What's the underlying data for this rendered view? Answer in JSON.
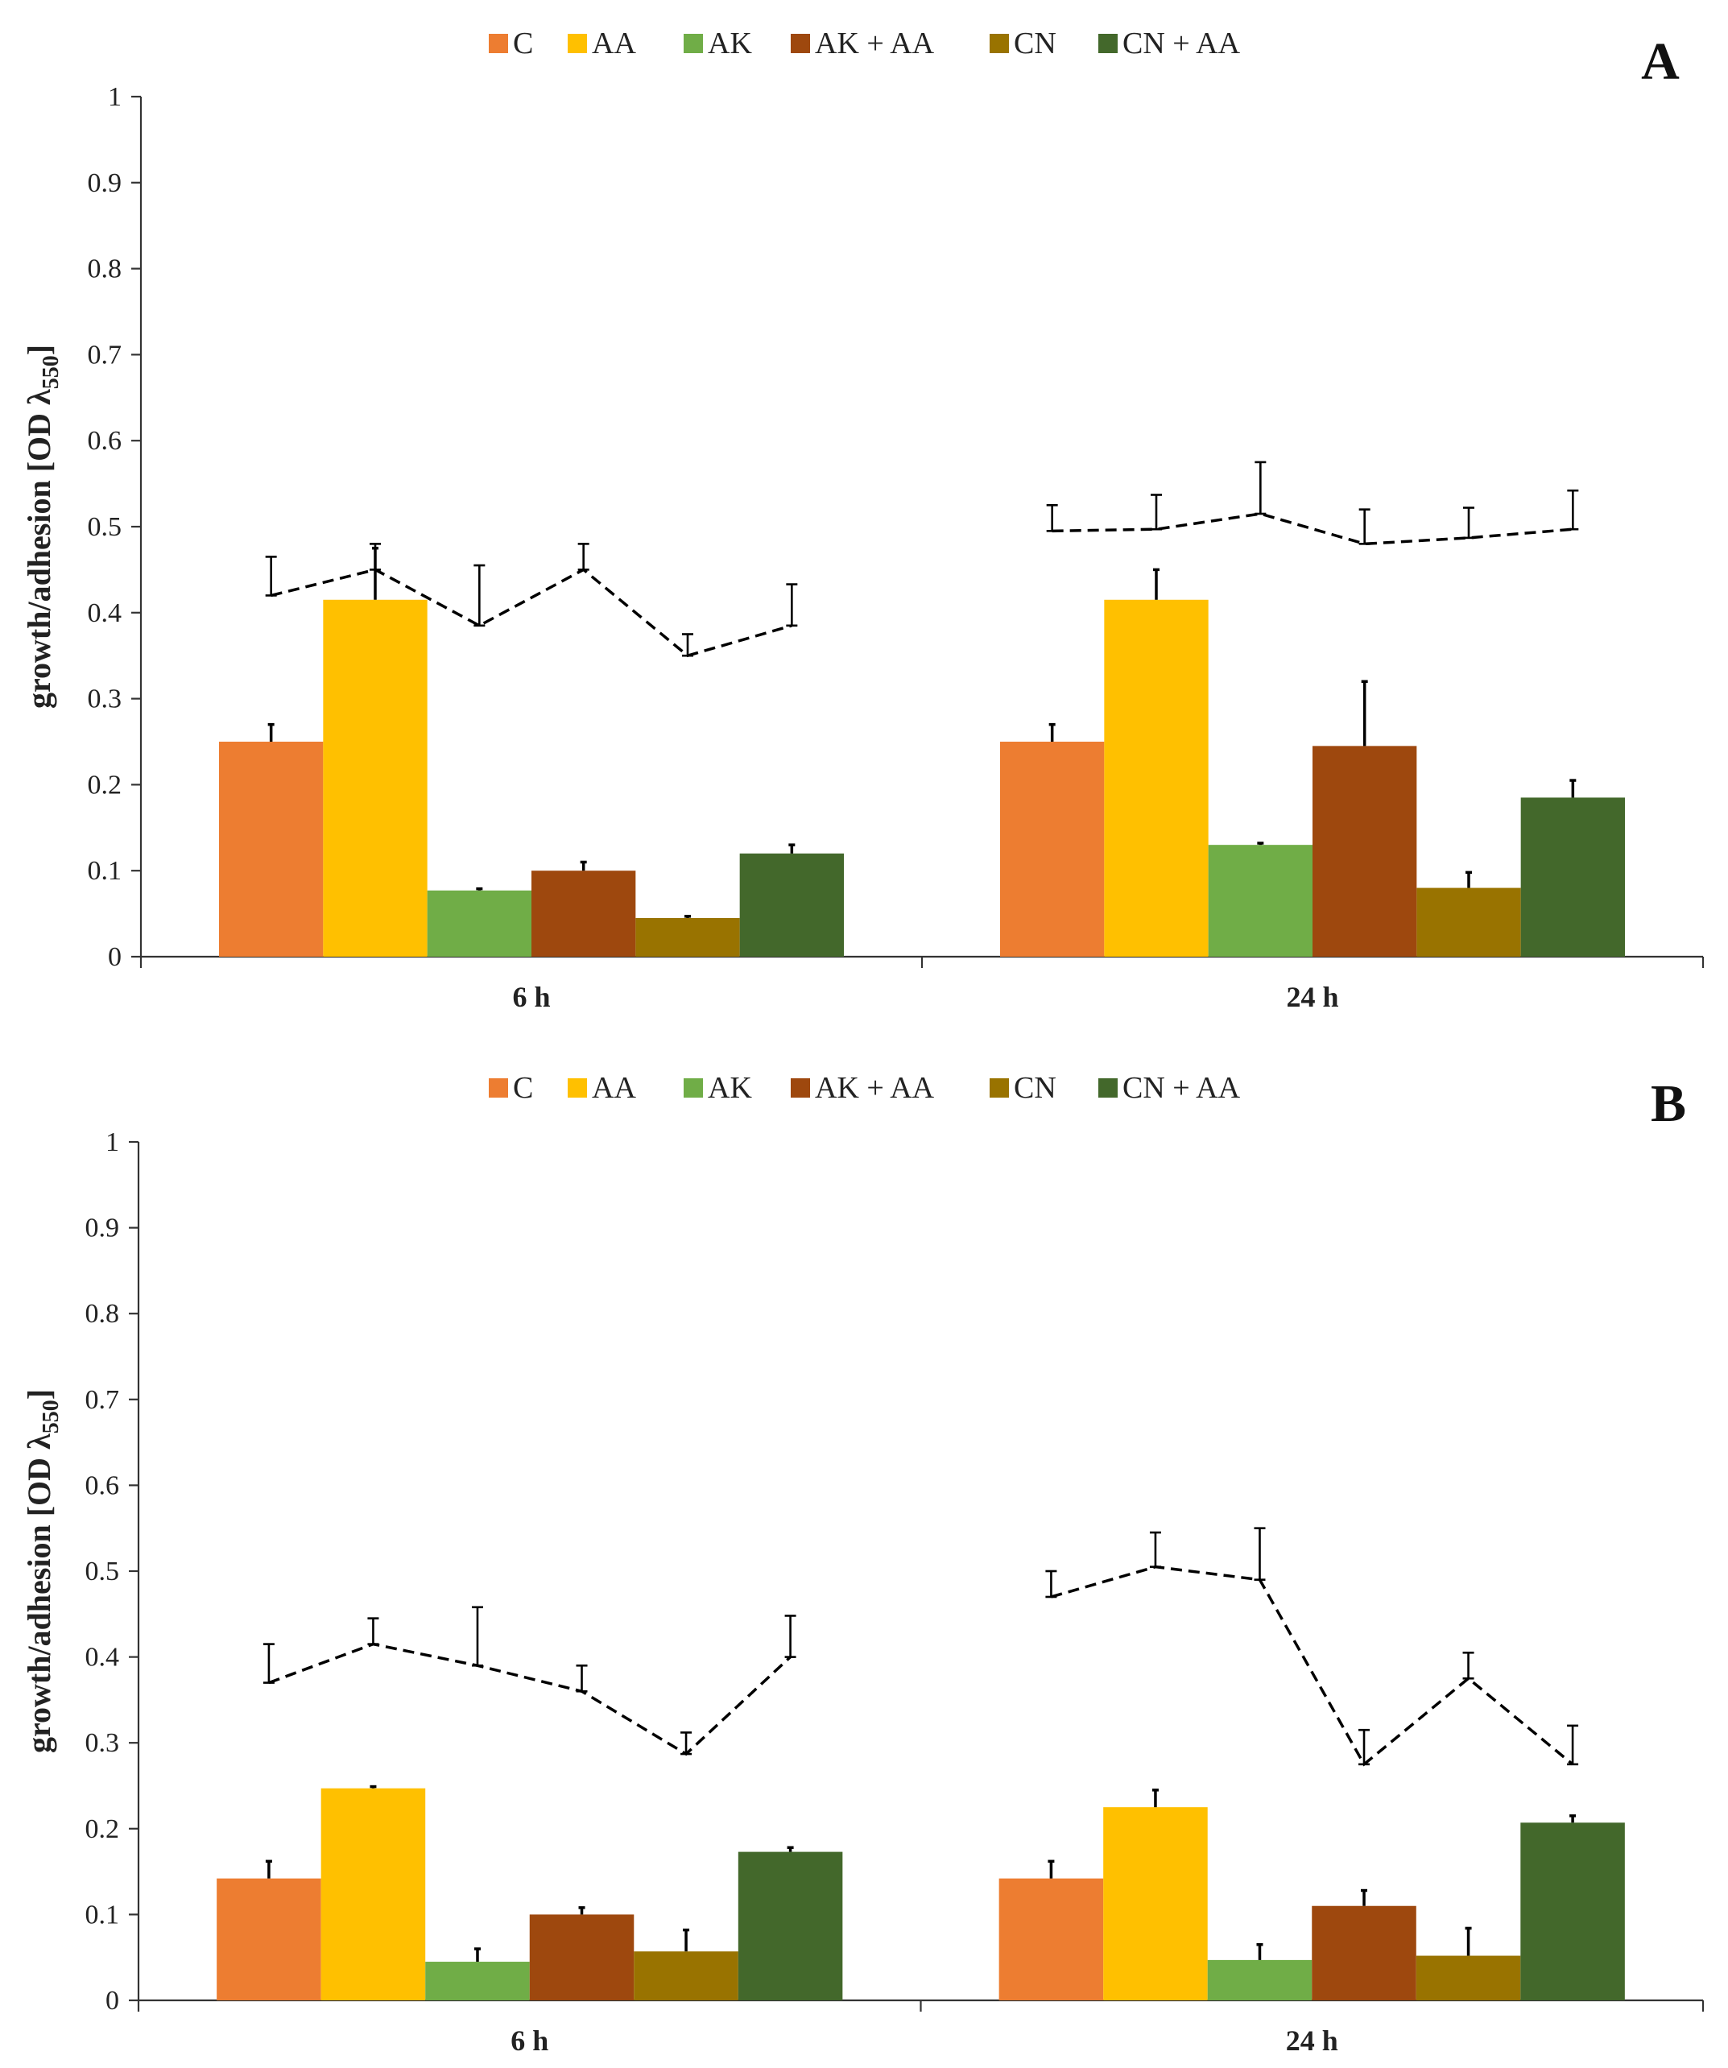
{
  "colors": {
    "C": "#ED7D31",
    "AA": "#FFC000",
    "AK": "#70AD47",
    "AK + AA": "#9E480E",
    "CN": "#997300",
    "CN + AA": "#43682B"
  },
  "chart_data": [
    {
      "panel": "A",
      "type": "bar",
      "ylabel": "growth/adhesion [OD λ",
      "ylabel_sub": "550",
      "ylabel_end": "]",
      "ylim": [
        0,
        1
      ],
      "yticks": [
        "0",
        "0.1",
        "0.2",
        "0.3",
        "0.4",
        "0.5",
        "0.6",
        "0.7",
        "0.8",
        "0.9",
        "1"
      ],
      "categories": [
        "6 h",
        "24 h"
      ],
      "legend": [
        "C",
        "AA",
        "AK",
        "AK + AA",
        "CN",
        "CN + AA"
      ],
      "series": [
        {
          "name": "C",
          "values": [
            0.25,
            0.25
          ],
          "errors": [
            0.02,
            0.02
          ]
        },
        {
          "name": "AA",
          "values": [
            0.415,
            0.415
          ],
          "errors": [
            0.06,
            0.035
          ]
        },
        {
          "name": "AK",
          "values": [
            0.077,
            0.13
          ],
          "errors": [
            0.002,
            0.002
          ]
        },
        {
          "name": "AK + AA",
          "values": [
            0.1,
            0.245
          ],
          "errors": [
            0.01,
            0.075
          ]
        },
        {
          "name": "CN",
          "values": [
            0.045,
            0.08
          ],
          "errors": [
            0.002,
            0.018
          ]
        },
        {
          "name": "CN + AA",
          "values": [
            0.12,
            0.185
          ],
          "errors": [
            0.01,
            0.02
          ]
        }
      ],
      "line": {
        "style": "dashed",
        "points": [
          {
            "category": "6 h",
            "values": [
              0.42,
              0.45,
              0.385,
              0.45,
              0.35,
              0.385
            ],
            "errors": [
              0.045,
              0.03,
              0.07,
              0.03,
              0.025,
              0.048
            ]
          },
          {
            "category": "24 h",
            "values": [
              0.495,
              0.497,
              0.515,
              0.48,
              0.487,
              0.497
            ],
            "errors": [
              0.03,
              0.04,
              0.06,
              0.04,
              0.035,
              0.045
            ]
          }
        ]
      }
    },
    {
      "panel": "B",
      "type": "bar",
      "ylabel": "growth/adhesion [OD λ",
      "ylabel_sub": "550",
      "ylabel_end": "]",
      "ylim": [
        0,
        1
      ],
      "yticks": [
        "0",
        "0.1",
        "0.2",
        "0.3",
        "0.4",
        "0.5",
        "0.6",
        "0.7",
        "0.8",
        "0.9",
        "1"
      ],
      "categories": [
        "6 h",
        "24 h"
      ],
      "legend": [
        "C",
        "AA",
        "AK",
        "AK + AA",
        "CN",
        "CN + AA"
      ],
      "series": [
        {
          "name": "C",
          "values": [
            0.142,
            0.142
          ],
          "errors": [
            0.02,
            0.02
          ]
        },
        {
          "name": "AA",
          "values": [
            0.247,
            0.225
          ],
          "errors": [
            0.002,
            0.02
          ]
        },
        {
          "name": "AK",
          "values": [
            0.045,
            0.047
          ],
          "errors": [
            0.015,
            0.018
          ]
        },
        {
          "name": "AK + AA",
          "values": [
            0.1,
            0.11
          ],
          "errors": [
            0.008,
            0.018
          ]
        },
        {
          "name": "CN",
          "values": [
            0.057,
            0.052
          ],
          "errors": [
            0.025,
            0.032
          ]
        },
        {
          "name": "CN + AA",
          "values": [
            0.173,
            0.207
          ],
          "errors": [
            0.005,
            0.008
          ]
        }
      ],
      "line": {
        "style": "dashed",
        "points": [
          {
            "category": "6 h",
            "values": [
              0.37,
              0.415,
              0.39,
              0.36,
              0.287,
              0.4
            ],
            "errors": [
              0.045,
              0.03,
              0.068,
              0.03,
              0.025,
              0.048
            ]
          },
          {
            "category": "24 h",
            "values": [
              0.47,
              0.505,
              0.49,
              0.275,
              0.375,
              0.275
            ],
            "errors": [
              0.03,
              0.04,
              0.06,
              0.04,
              0.03,
              0.045
            ]
          }
        ]
      }
    }
  ]
}
